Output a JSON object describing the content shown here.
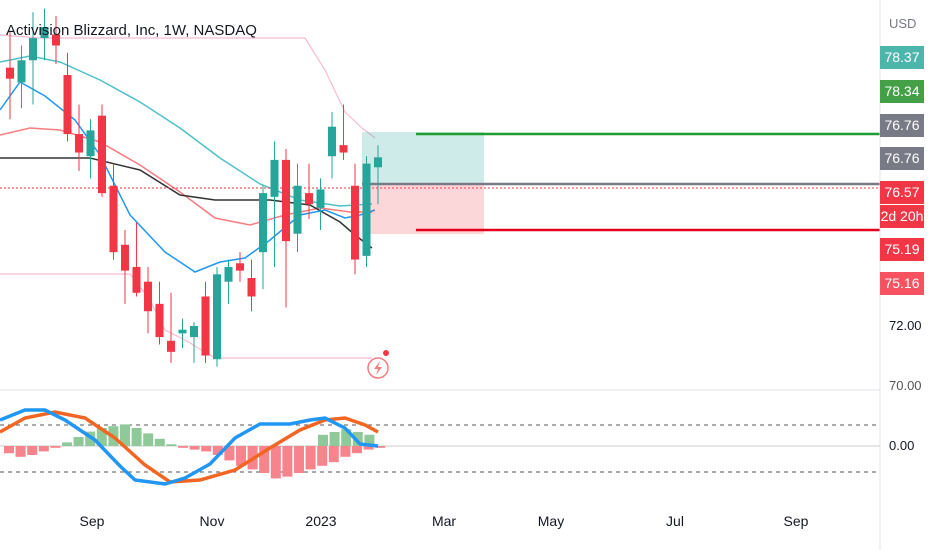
{
  "title": "Activision Blizzard, Inc, 1W, NASDAQ",
  "currency": "USD",
  "price_tags": [
    {
      "label": "78.37",
      "color": "#4db6ac"
    },
    {
      "label": "78.34",
      "color": "#43a047"
    },
    {
      "label": "76.76",
      "color": "#787b86"
    },
    {
      "label": "76.76",
      "color": "#787b86"
    },
    {
      "label": "76.57",
      "color": "#f23645"
    },
    {
      "label": "2d 20h",
      "color": "#f23645"
    },
    {
      "label": "75.19",
      "color": "#f23645"
    },
    {
      "label": "75.16",
      "color": "#f7525f"
    }
  ],
  "y_axis_labels": [
    "72.00",
    "70.00"
  ],
  "osc_axis_label": "0.00",
  "x_axis_labels": [
    "Sep",
    "Nov",
    "2023",
    "Mar",
    "May",
    "Jul",
    "Sep"
  ],
  "colors": {
    "up": "#26a69a",
    "down": "#f23645",
    "ema_teal": "#4dc0c8",
    "ema_blue": "#2196f3",
    "ema_red": "#f77c80",
    "sma_black": "#333333",
    "band": "#f8bbd0",
    "stop": "#e5001c",
    "target": "#1f9d30"
  },
  "chart_data": {
    "type": "candlestick",
    "interval": "1W",
    "candles": [
      {
        "o": 79.0,
        "h": 80.0,
        "l": 77.6,
        "c": 78.7
      },
      {
        "o": 78.6,
        "h": 79.6,
        "l": 77.9,
        "c": 79.2
      },
      {
        "o": 79.2,
        "h": 80.5,
        "l": 78.0,
        "c": 79.8
      },
      {
        "o": 79.8,
        "h": 80.6,
        "l": 79.2,
        "c": 80.1
      },
      {
        "o": 79.9,
        "h": 80.4,
        "l": 79.1,
        "c": 79.6
      },
      {
        "o": 78.8,
        "h": 79.4,
        "l": 77.0,
        "c": 77.2
      },
      {
        "o": 77.2,
        "h": 78.0,
        "l": 76.2,
        "c": 76.7
      },
      {
        "o": 76.6,
        "h": 77.6,
        "l": 76.0,
        "c": 77.3
      },
      {
        "o": 77.7,
        "h": 78.0,
        "l": 75.5,
        "c": 75.6
      },
      {
        "o": 75.8,
        "h": 76.4,
        "l": 73.8,
        "c": 74.0
      },
      {
        "o": 74.2,
        "h": 74.6,
        "l": 72.6,
        "c": 73.5
      },
      {
        "o": 73.6,
        "h": 74.8,
        "l": 72.8,
        "c": 72.9
      },
      {
        "o": 73.2,
        "h": 73.6,
        "l": 71.8,
        "c": 72.4
      },
      {
        "o": 72.6,
        "h": 73.2,
        "l": 71.5,
        "c": 71.7
      },
      {
        "o": 71.6,
        "h": 72.9,
        "l": 71.0,
        "c": 71.3
      },
      {
        "o": 71.8,
        "h": 72.2,
        "l": 71.4,
        "c": 71.9
      },
      {
        "o": 71.7,
        "h": 72.1,
        "l": 71.0,
        "c": 72.0
      },
      {
        "o": 72.8,
        "h": 73.2,
        "l": 71.0,
        "c": 71.2
      },
      {
        "o": 71.1,
        "h": 73.6,
        "l": 70.9,
        "c": 73.4
      },
      {
        "o": 73.2,
        "h": 73.8,
        "l": 72.6,
        "c": 73.6
      },
      {
        "o": 73.7,
        "h": 74.0,
        "l": 73.2,
        "c": 73.5
      },
      {
        "o": 73.3,
        "h": 73.8,
        "l": 72.4,
        "c": 72.8
      },
      {
        "o": 74.0,
        "h": 75.8,
        "l": 73.0,
        "c": 75.6
      },
      {
        "o": 75.5,
        "h": 77.0,
        "l": 73.6,
        "c": 76.5
      },
      {
        "o": 76.5,
        "h": 76.8,
        "l": 72.5,
        "c": 74.3
      },
      {
        "o": 74.5,
        "h": 76.4,
        "l": 74.0,
        "c": 75.8
      },
      {
        "o": 75.6,
        "h": 76.4,
        "l": 74.9,
        "c": 75.3
      },
      {
        "o": 75.2,
        "h": 76.0,
        "l": 74.6,
        "c": 75.7
      },
      {
        "o": 76.6,
        "h": 77.8,
        "l": 76.0,
        "c": 77.4
      },
      {
        "o": 76.9,
        "h": 78.0,
        "l": 76.5,
        "c": 76.7
      },
      {
        "o": 75.8,
        "h": 76.4,
        "l": 73.4,
        "c": 73.8
      },
      {
        "o": 73.9,
        "h": 76.6,
        "l": 73.6,
        "c": 76.4
      },
      {
        "o": 76.3,
        "h": 76.9,
        "l": 75.3,
        "c": 76.57
      }
    ],
    "target_level": 78.34,
    "stop_level": 75.19,
    "entry_level": 76.76,
    "y_axis_ticks": [
      72.0,
      70.0
    ],
    "x_axis_ticks": [
      "Sep",
      "Nov",
      "2023",
      "Mar",
      "May",
      "Jul",
      "Sep"
    ]
  }
}
